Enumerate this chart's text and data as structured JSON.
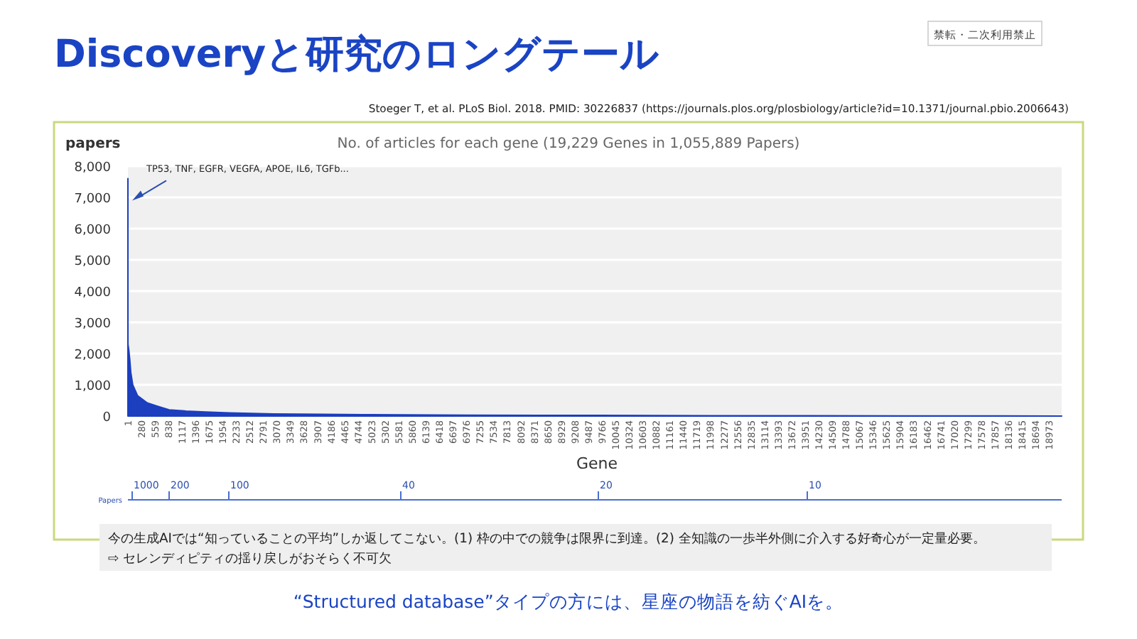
{
  "chart_data": {
    "type": "area",
    "title": "Discoveryと研究のロングテール",
    "subtitle": "No. of articles for each gene (19,229 Genes in 1,055,889 Papers)",
    "xlabel": "Gene",
    "ylabel": "papers",
    "annotations": [
      {
        "text": "TP53, TNF, EGFR, VEGFA, APOE, IL6, TGFb...",
        "x": 1,
        "y": 6900
      },
      "Stoeger T, et al. PLoS Biol. 2018. PMID: 30226837 (https://journals.plos.org/plosbiology/article?id=10.1371/journal.pbio.2006643)",
      "禁転・二次利用禁止",
      "今の生成AIでは“知っていることの平均”しか返してこない。(1) 枠の中での競争は限界に到達。(2) 全知識の一歩半外側に介入する好奇心が一定量必要。",
      "⇨ セレンディピティの揺り戻しがおそらく不可欠",
      "“Structured database”タイプの方には、星座の物語を紡ぐAIを。",
      "Papers",
      "1000",
      "200",
      "100",
      "40",
      "20",
      "10"
    ],
    "x": [
      1,
      2,
      20,
      40,
      60,
      100,
      200,
      400,
      600,
      850,
      1200,
      1600,
      2080,
      3000,
      4000,
      5000,
      5630,
      7000,
      8500,
      9700,
      12000,
      14000,
      16000,
      18000,
      19229
    ],
    "series": [
      {
        "color": "#1b3fbf",
        "values": [
          7600,
          2300,
          2100,
          1800,
          1400,
          1000,
          650,
          420,
          320,
          200,
          160,
          130,
          100,
          70,
          55,
          45,
          40,
          30,
          24,
          20,
          14,
          10,
          6,
          3,
          0
        ]
      }
    ],
    "xlim": [
      1,
      19229
    ],
    "ylim": [
      0,
      8000
    ],
    "xticks": [
      1,
      280,
      559,
      838,
      1117,
      1396,
      1675,
      1954,
      2233,
      2512,
      2791,
      3070,
      3349,
      3628,
      3907,
      4186,
      4465,
      4744,
      5023,
      5302,
      5581,
      5860,
      6139,
      6418,
      6697,
      6976,
      7255,
      7534,
      7813,
      8092,
      8371,
      8650,
      8929,
      9208,
      9487,
      9766,
      10045,
      10324,
      10603,
      10882,
      11161,
      11440,
      11719,
      11998,
      12277,
      12556,
      12835,
      13114,
      13393,
      13672,
      13951,
      14230,
      14509,
      14788,
      15067,
      15346,
      15625,
      15904,
      16183,
      16462,
      16741,
      17020,
      17299,
      17578,
      17857,
      18136,
      18415,
      18694,
      18973
    ],
    "yticks": [
      0,
      {
        "value": 1000,
        "label": "1,000"
      },
      {
        "value": 2000,
        "label": "2,000"
      },
      {
        "value": 3000,
        "label": "3,000"
      },
      {
        "value": 4000,
        "label": "4,000"
      },
      {
        "value": 5000,
        "label": "5,000"
      },
      {
        "value": 6000,
        "label": "6,000"
      },
      {
        "value": 7000,
        "label": "7,000"
      },
      {
        "value": 8000,
        "label": "8,000"
      }
    ],
    "grid": "y"
  }
}
